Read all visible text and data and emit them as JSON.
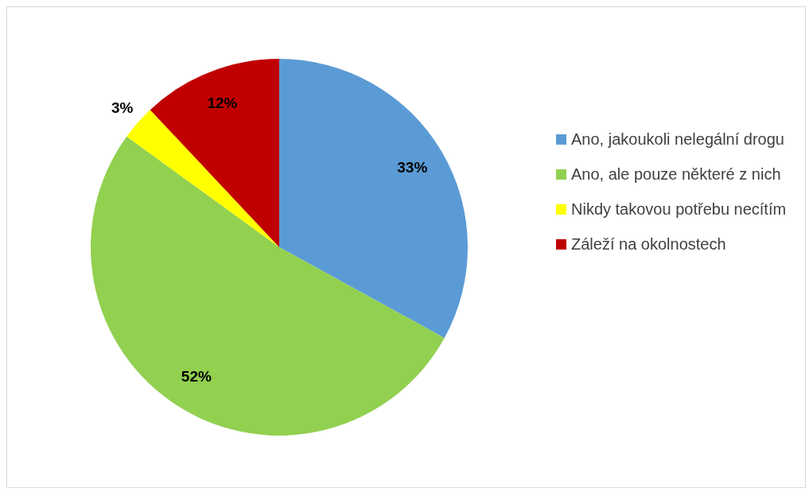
{
  "chart_data": {
    "type": "pie",
    "categories": [
      "Ano, jakoukoli nelegální drogu",
      "Ano, ale pouze některé z nich",
      "Nikdy takovou potřebu necítím",
      "Záleží na okolnostech"
    ],
    "values": [
      33,
      52,
      3,
      12
    ],
    "colors": [
      "#5b9bd5",
      "#92d050",
      "#ffff00",
      "#c00000"
    ],
    "value_labels": [
      "33%",
      "52%",
      "3%",
      "12%"
    ],
    "legend": "right"
  }
}
